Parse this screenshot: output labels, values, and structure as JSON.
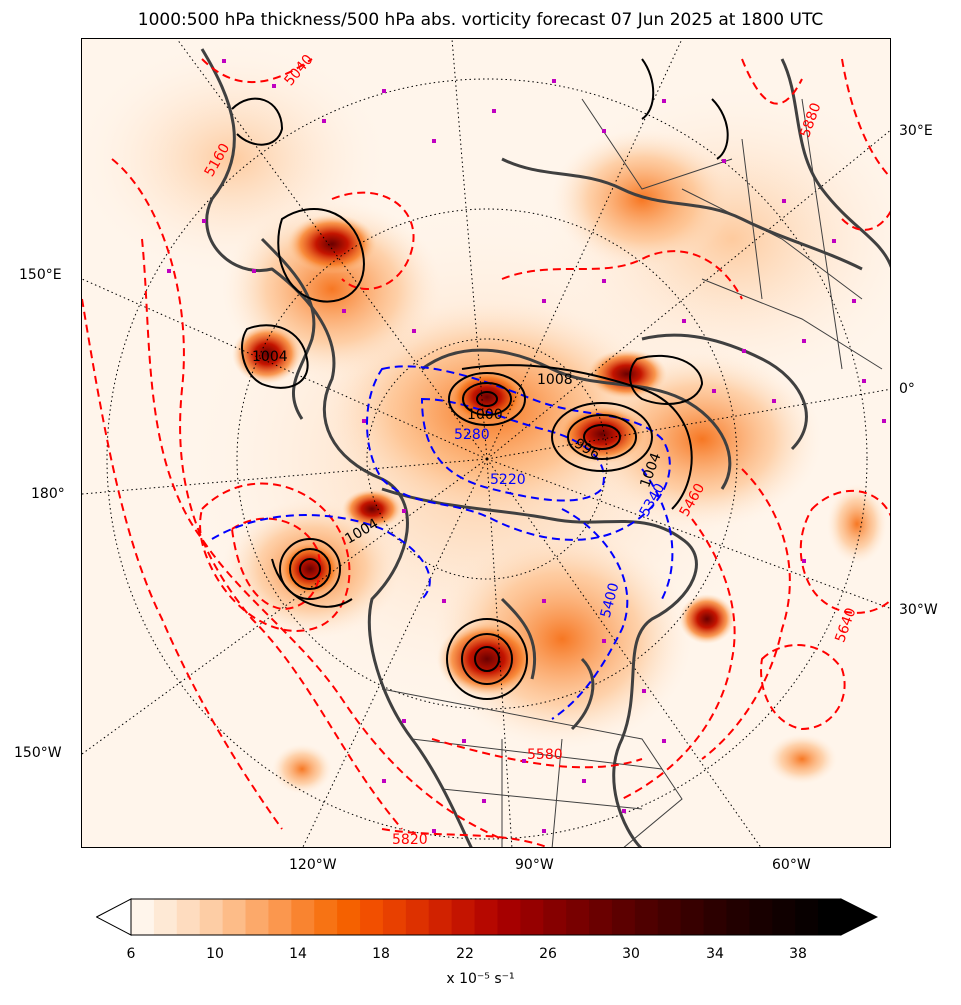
{
  "title": "1000:500 hPa thickness/500 hPa abs. vorticity forecast 07 Jun 2025 at 1800 UTC",
  "map": {
    "projection": "north polar stereographic",
    "lat_lon_labels": {
      "right": [
        "30°E",
        "0°",
        "30°W"
      ],
      "left": [
        "150°E",
        "180°",
        "150°W"
      ],
      "bottom": [
        "120°W",
        "90°W",
        "60°W"
      ]
    },
    "shading": {
      "variable": "500 hPa absolute vorticity",
      "palette": [
        "#fff5eb",
        "#fee6ce",
        "#fdd0a2",
        "#fdae6b",
        "#fd8d3c",
        "#f16913",
        "#d94801",
        "#b30000",
        "#800000",
        "#400000",
        "#000000"
      ]
    },
    "thickness_contours": {
      "warm_color": "#ff0000",
      "cold_color": "#0000ff",
      "labels": [
        "5280",
        "5220",
        "5340",
        "5400",
        "5460",
        "5580",
        "5640",
        "5820",
        "5880",
        "5160",
        "5040"
      ]
    },
    "mslp_contours": {
      "color": "#000000",
      "labels": [
        "1004",
        "1000",
        "996",
        "1008"
      ]
    },
    "station_marker_color": "#c000c0",
    "coastline_color": "#404040"
  },
  "colorbar": {
    "tick_labels": [
      "6",
      "10",
      "14",
      "18",
      "22",
      "26",
      "30",
      "34",
      "38"
    ],
    "unit": "x 10⁻⁵ s⁻¹",
    "extend": "both",
    "colors": [
      "#fff5eb",
      "#fee9d5",
      "#fedcbf",
      "#fdcda5",
      "#fdbc88",
      "#fca96a",
      "#fb974e",
      "#f98430",
      "#f77314",
      "#f56100",
      "#f24f00",
      "#e84000",
      "#dd3100",
      "#d12200",
      "#c41400",
      "#b60800",
      "#a60000",
      "#960000",
      "#860000",
      "#780000",
      "#6a0000",
      "#5c0000",
      "#4f0000",
      "#430000",
      "#370000",
      "#2c0000",
      "#220000",
      "#180000",
      "#100000",
      "#080000",
      "#000000"
    ]
  }
}
